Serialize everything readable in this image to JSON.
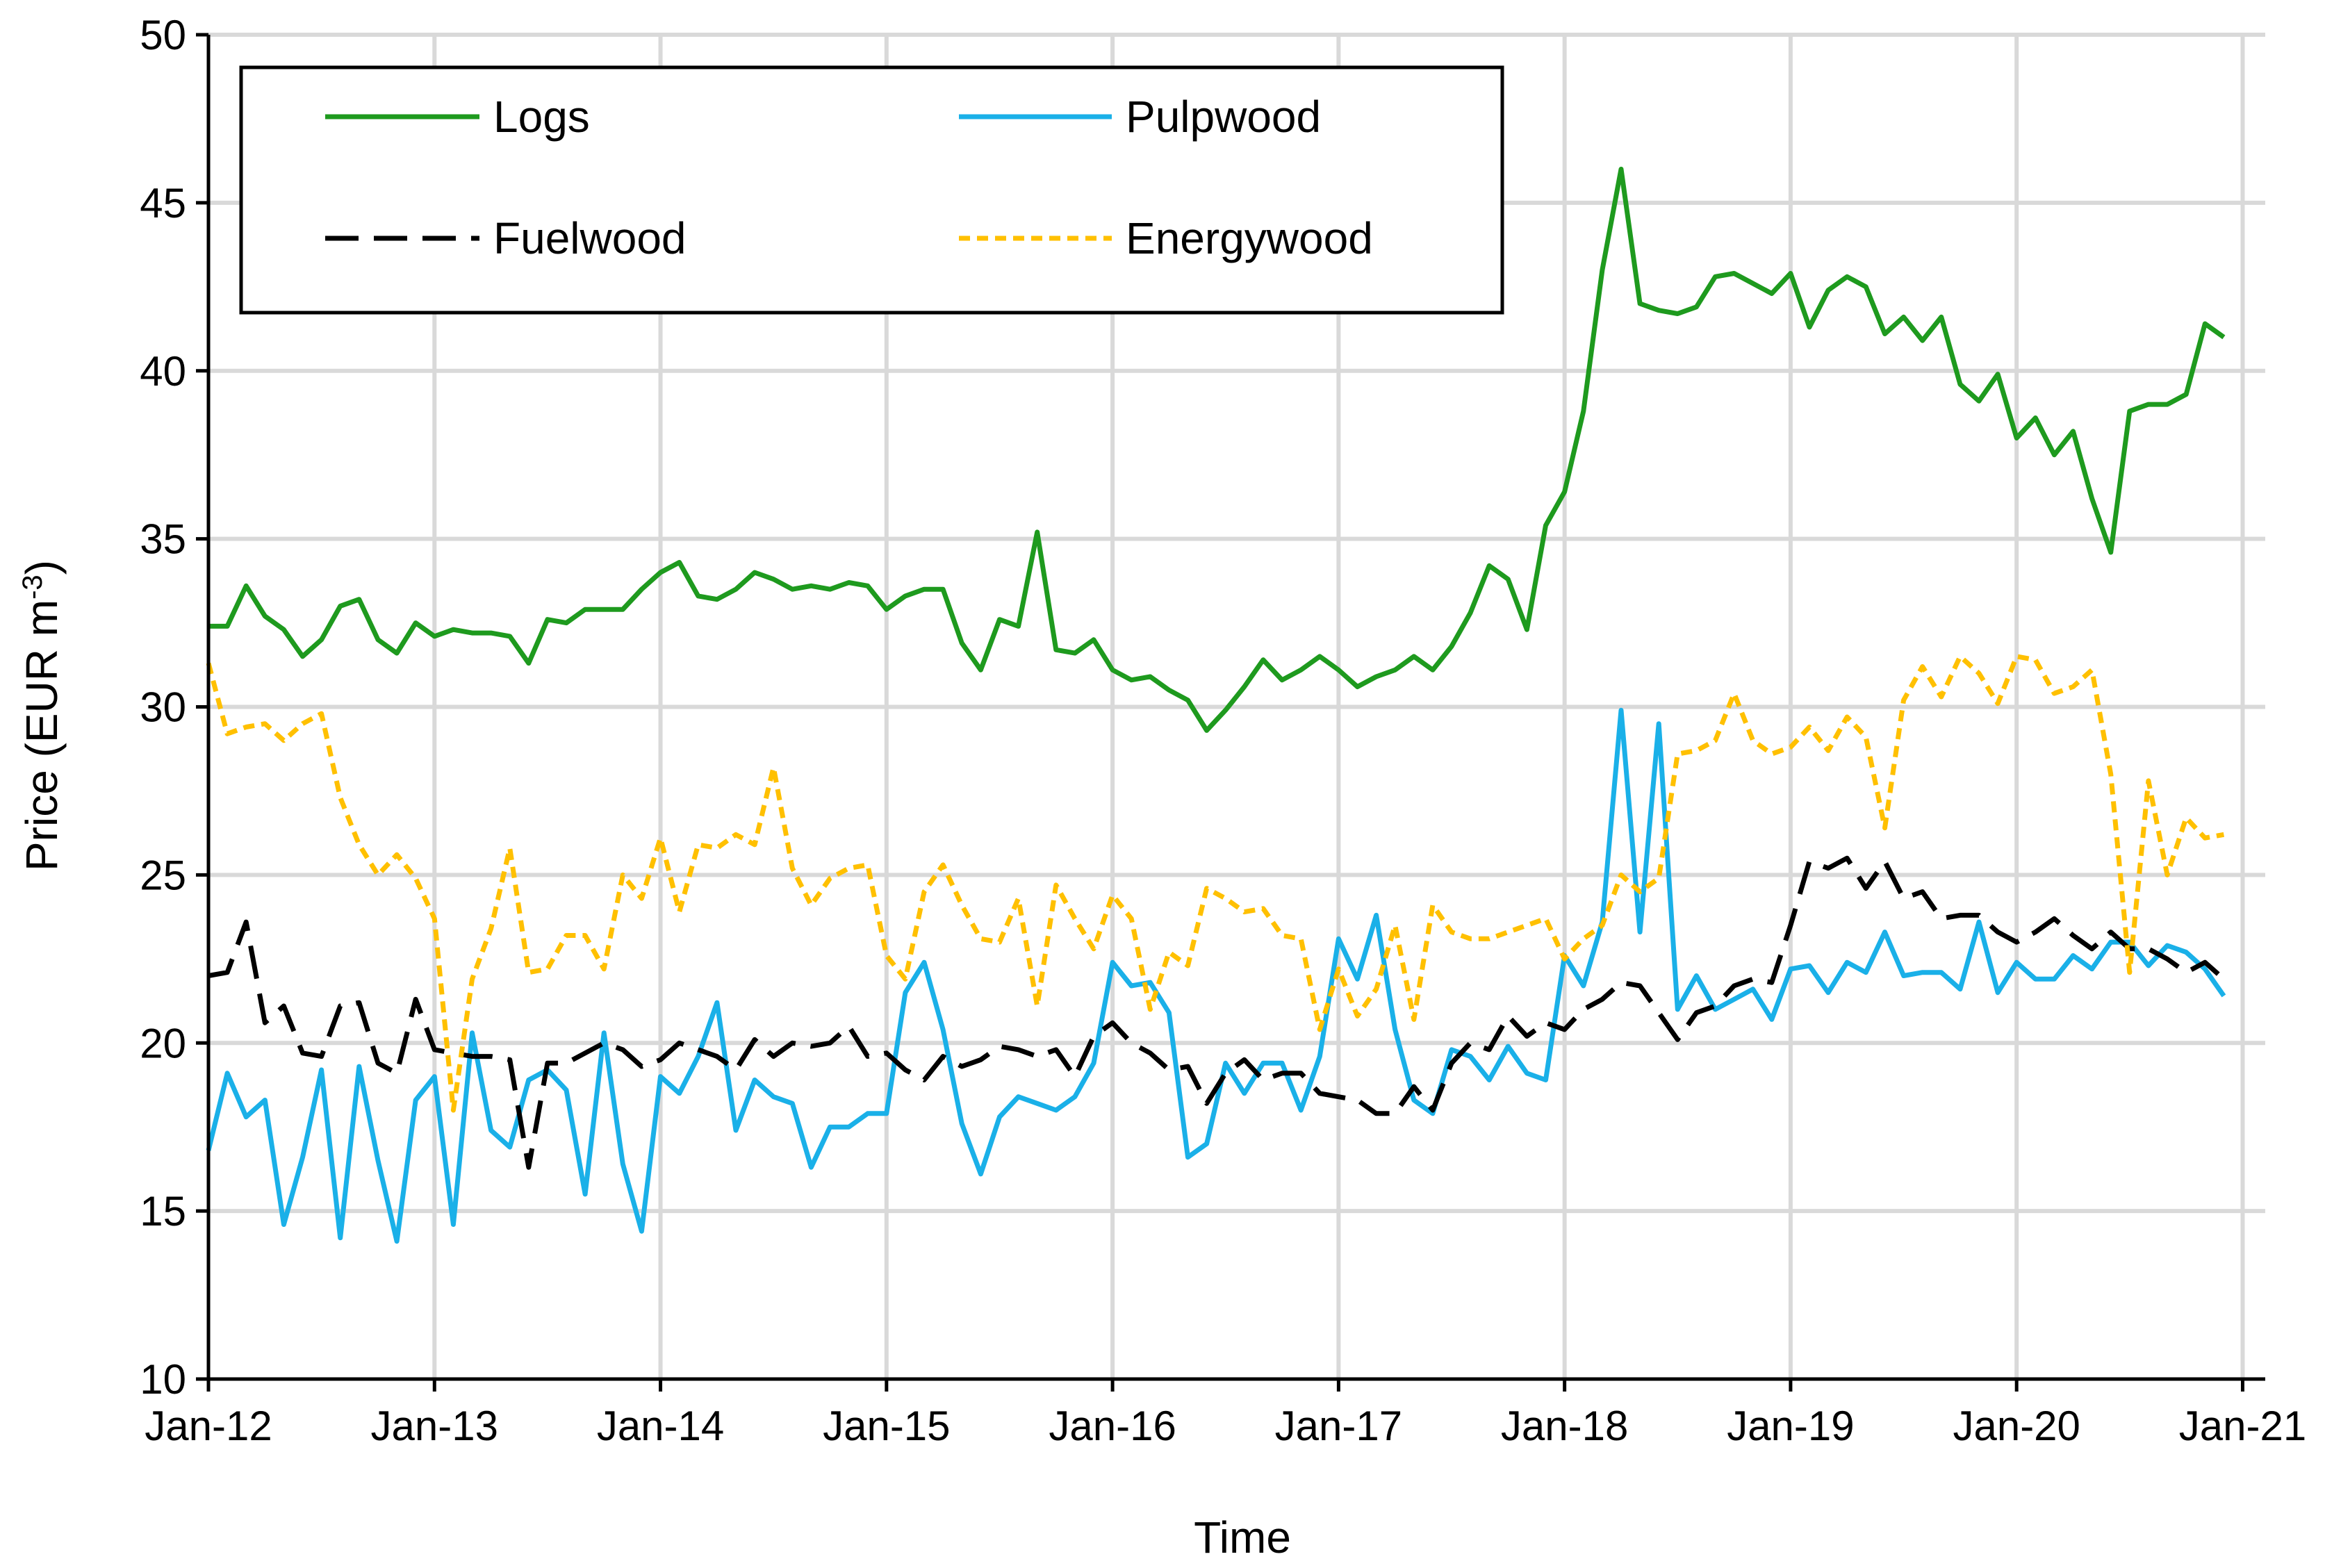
{
  "chart_data": {
    "type": "line",
    "title": "",
    "xlabel": "Time",
    "ylabel": "Price (EUR m",
    "ylabel_sup": "-3",
    "ylabel_suffix": ")",
    "ylim": [
      10,
      50
    ],
    "yticks": [
      10,
      15,
      20,
      25,
      30,
      35,
      40,
      45,
      50
    ],
    "xlim": [
      2012.0,
      2021.1
    ],
    "xticks": [
      {
        "value": 2012,
        "label": "Jan-12"
      },
      {
        "value": 2013,
        "label": "Jan-13"
      },
      {
        "value": 2014,
        "label": "Jan-14"
      },
      {
        "value": 2015,
        "label": "Jan-15"
      },
      {
        "value": 2016,
        "label": "Jan-16"
      },
      {
        "value": 2017,
        "label": "Jan-17"
      },
      {
        "value": 2018,
        "label": "Jan-18"
      },
      {
        "value": 2019,
        "label": "Jan-19"
      },
      {
        "value": 2020,
        "label": "Jan-20"
      },
      {
        "value": 2021,
        "label": "Jan-21"
      }
    ],
    "grid": true,
    "legend_position": "top-left",
    "x_start": 2012.0,
    "x_step_months": 1,
    "series": [
      {
        "name": "Logs",
        "color": "#1e9a1e",
        "dash": "solid",
        "values": [
          32.4,
          32.4,
          33.6,
          32.7,
          32.3,
          31.5,
          32.0,
          33.0,
          33.2,
          32.0,
          31.6,
          32.5,
          32.1,
          32.3,
          32.2,
          32.2,
          32.1,
          31.3,
          32.6,
          32.5,
          32.9,
          32.9,
          32.9,
          33.5,
          34.0,
          34.3,
          33.3,
          33.2,
          33.5,
          34.0,
          33.8,
          33.5,
          33.6,
          33.5,
          33.7,
          33.6,
          32.9,
          33.3,
          33.5,
          33.5,
          31.9,
          31.1,
          32.6,
          32.4,
          35.2,
          31.7,
          31.6,
          32.0,
          31.1,
          30.8,
          30.9,
          30.5,
          30.2,
          29.3,
          29.9,
          30.6,
          31.4,
          30.8,
          31.1,
          31.5,
          31.1,
          30.6,
          30.9,
          31.1,
          31.5,
          31.1,
          31.8,
          32.8,
          34.2,
          33.8,
          32.3,
          35.4,
          36.4,
          38.8,
          43.0,
          46.0,
          42.0,
          41.8,
          41.7,
          41.9,
          42.8,
          42.9,
          42.6,
          42.3,
          42.9,
          41.3,
          42.4,
          42.8,
          42.5,
          41.1,
          41.6,
          40.9,
          41.6,
          39.6,
          39.1,
          39.9,
          38.0,
          38.6,
          37.5,
          38.2,
          36.2,
          34.6,
          38.8,
          39.0,
          39.0,
          39.3,
          41.4,
          41.0
        ]
      },
      {
        "name": "Pulpwood",
        "color": "#1ab0e8",
        "dash": "solid",
        "values": [
          16.8,
          19.1,
          17.8,
          18.3,
          14.6,
          16.6,
          19.2,
          14.2,
          19.3,
          16.5,
          14.1,
          18.3,
          19.0,
          14.6,
          20.3,
          17.4,
          16.9,
          18.9,
          19.2,
          18.6,
          15.5,
          20.3,
          16.4,
          14.4,
          19.0,
          18.5,
          19.6,
          21.2,
          17.4,
          18.9,
          18.4,
          18.2,
          16.3,
          17.5,
          17.5,
          17.9,
          17.9,
          21.5,
          22.4,
          20.4,
          17.6,
          16.1,
          17.8,
          18.4,
          18.2,
          18.0,
          18.4,
          19.4,
          22.4,
          21.7,
          21.8,
          20.9,
          16.6,
          17.0,
          19.4,
          18.5,
          19.4,
          19.4,
          18.0,
          19.6,
          23.1,
          21.9,
          23.8,
          20.4,
          18.3,
          17.9,
          19.8,
          19.6,
          18.9,
          19.9,
          19.1,
          18.9,
          22.6,
          21.7,
          23.6,
          29.9,
          23.3,
          29.5,
          21.0,
          22.0,
          21.0,
          21.3,
          21.6,
          20.7,
          22.2,
          22.3,
          21.5,
          22.4,
          22.1,
          23.3,
          22.0,
          22.1,
          22.1,
          21.6,
          23.6,
          21.5,
          22.4,
          21.9,
          21.9,
          22.6,
          22.2,
          23.0,
          23.0,
          22.3,
          22.9,
          22.7,
          22.2,
          21.4
        ]
      },
      {
        "name": "Fuelwood",
        "color": "#000000",
        "dash": "long",
        "values": [
          22.0,
          22.1,
          23.6,
          20.6,
          21.1,
          19.7,
          19.6,
          21.1,
          21.2,
          19.4,
          19.1,
          21.3,
          19.8,
          19.7,
          19.6,
          19.6,
          19.5,
          16.3,
          19.4,
          19.4,
          19.7,
          20.0,
          19.8,
          19.3,
          19.5,
          20.0,
          19.8,
          19.6,
          19.2,
          20.1,
          19.6,
          20.0,
          19.9,
          20.0,
          20.5,
          19.6,
          19.7,
          19.2,
          18.9,
          19.6,
          19.3,
          19.5,
          19.9,
          19.8,
          19.6,
          19.8,
          19.0,
          20.2,
          20.6,
          20.0,
          19.7,
          19.2,
          19.3,
          18.2,
          19.1,
          19.5,
          18.9,
          19.1,
          19.1,
          18.5,
          18.4,
          18.3,
          17.9,
          17.9,
          18.7,
          18.0,
          19.4,
          20.0,
          19.8,
          20.8,
          20.2,
          20.6,
          20.4,
          21.0,
          21.3,
          21.8,
          21.7,
          20.9,
          20.1,
          20.9,
          21.1,
          21.7,
          21.9,
          21.8,
          23.5,
          25.4,
          25.2,
          25.5,
          24.6,
          25.4,
          24.3,
          24.5,
          23.7,
          23.8,
          23.8,
          23.3,
          23.0,
          23.3,
          23.7,
          23.2,
          22.8,
          23.3,
          22.8,
          22.8,
          22.5,
          22.1,
          22.4,
          21.9
        ]
      },
      {
        "name": "Energywood",
        "color": "#ffc000",
        "dash": "short",
        "values": [
          31.3,
          29.2,
          29.4,
          29.5,
          29.0,
          29.5,
          29.8,
          27.3,
          25.9,
          25.0,
          25.6,
          24.9,
          23.7,
          18.0,
          21.9,
          23.4,
          25.8,
          22.1,
          22.2,
          23.2,
          23.2,
          22.2,
          25.0,
          24.3,
          26.1,
          23.9,
          25.9,
          25.8,
          26.2,
          25.9,
          28.2,
          25.2,
          24.1,
          24.9,
          25.2,
          25.3,
          22.6,
          21.9,
          24.5,
          25.3,
          24.1,
          23.1,
          23.0,
          24.3,
          21.1,
          24.7,
          23.7,
          22.8,
          24.4,
          23.7,
          21.0,
          22.7,
          22.3,
          24.6,
          24.3,
          23.9,
          24.0,
          23.2,
          23.1,
          20.4,
          22.2,
          20.8,
          21.6,
          23.5,
          20.7,
          24.1,
          23.3,
          23.1,
          23.1,
          23.3,
          23.5,
          23.7,
          22.5,
          23.1,
          23.5,
          25.0,
          24.5,
          24.9,
          28.6,
          28.7,
          29.0,
          30.4,
          29.0,
          28.6,
          28.8,
          29.4,
          28.7,
          29.7,
          29.1,
          26.4,
          30.2,
          31.2,
          30.3,
          31.5,
          31.0,
          30.1,
          31.5,
          31.4,
          30.4,
          30.6,
          31.1,
          28.0,
          22.1,
          27.8,
          25.0,
          26.7,
          26.1,
          26.2
        ]
      }
    ]
  }
}
